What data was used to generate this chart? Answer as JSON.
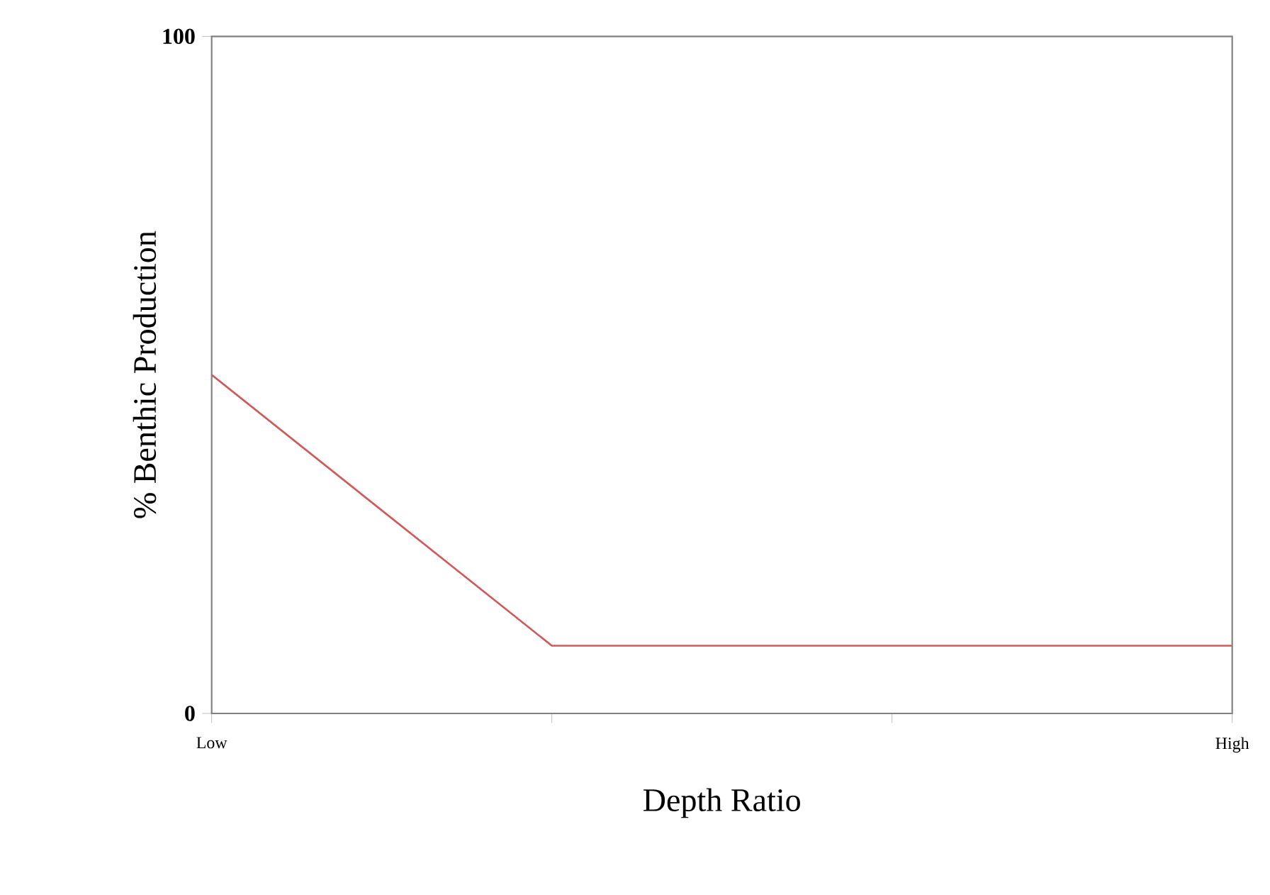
{
  "chart_data": {
    "type": "line",
    "xlabel": "Depth Ratio",
    "ylabel": "% Benthic Production",
    "categories": [
      "Low",
      null,
      null,
      "High"
    ],
    "series": [
      {
        "color": "#d05a5a",
        "values": [
          50,
          10,
          10,
          10
        ]
      }
    ],
    "ylim": [
      0,
      100
    ],
    "yticks": [
      0,
      100
    ],
    "marker": "none",
    "line_style": "solid"
  }
}
